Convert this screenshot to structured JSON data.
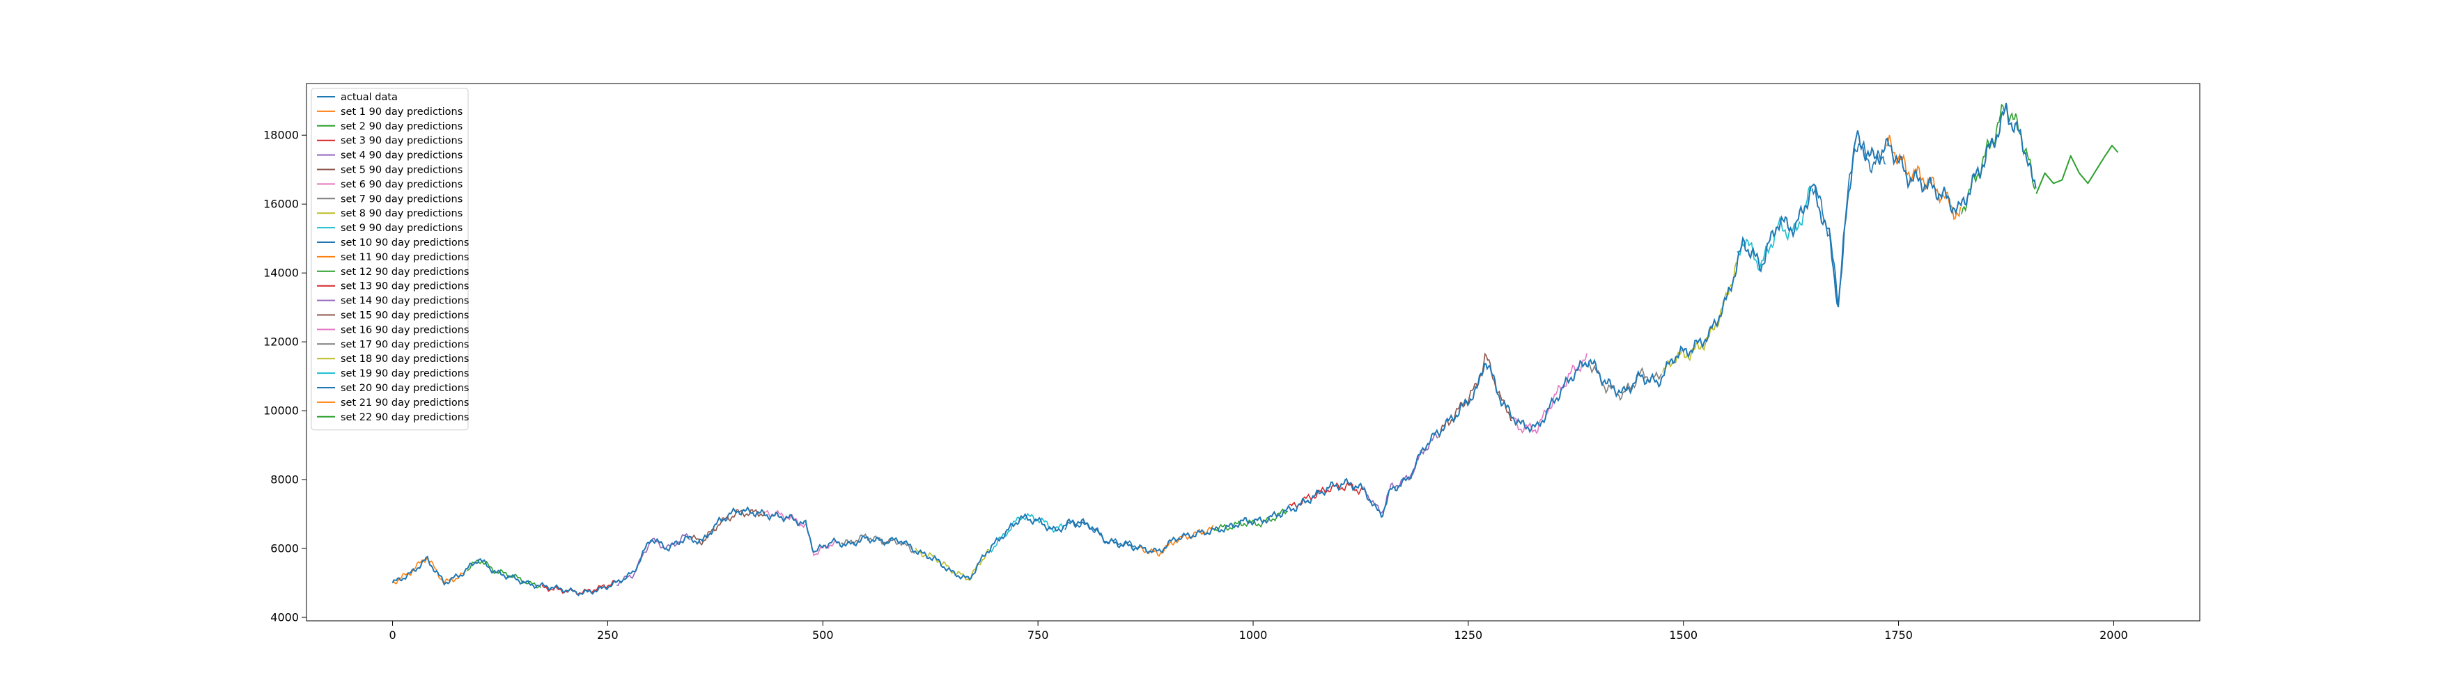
{
  "chart_data": {
    "type": "line",
    "title": "",
    "xlabel": "",
    "ylabel": "",
    "xlim": [
      -100,
      2100
    ],
    "ylim": [
      3900,
      19500
    ],
    "x_ticks": [
      0,
      250,
      500,
      750,
      1000,
      1250,
      1500,
      1750,
      2000
    ],
    "y_ticks": [
      4000,
      6000,
      8000,
      10000,
      12000,
      14000,
      16000,
      18000
    ],
    "grid": false,
    "legend_position": "top-left",
    "actual": {
      "name": "actual data",
      "color": "#1f77b4",
      "points": [
        [
          0,
          5000
        ],
        [
          20,
          5250
        ],
        [
          40,
          5700
        ],
        [
          60,
          5000
        ],
        [
          80,
          5250
        ],
        [
          100,
          5700
        ],
        [
          120,
          5300
        ],
        [
          140,
          5150
        ],
        [
          160,
          4950
        ],
        [
          180,
          4900
        ],
        [
          200,
          4800
        ],
        [
          220,
          4700
        ],
        [
          240,
          4800
        ],
        [
          260,
          5000
        ],
        [
          280,
          5300
        ],
        [
          300,
          6300
        ],
        [
          320,
          6000
        ],
        [
          340,
          6300
        ],
        [
          360,
          6200
        ],
        [
          380,
          6800
        ],
        [
          400,
          7100
        ],
        [
          420,
          7050
        ],
        [
          440,
          6950
        ],
        [
          460,
          6900
        ],
        [
          480,
          6700
        ],
        [
          490,
          5900
        ],
        [
          510,
          6200
        ],
        [
          530,
          6100
        ],
        [
          550,
          6300
        ],
        [
          570,
          6200
        ],
        [
          590,
          6250
        ],
        [
          610,
          5900
        ],
        [
          630,
          5700
        ],
        [
          650,
          5300
        ],
        [
          670,
          5100
        ],
        [
          690,
          5900
        ],
        [
          710,
          6400
        ],
        [
          730,
          6900
        ],
        [
          750,
          6800
        ],
        [
          770,
          6500
        ],
        [
          790,
          6800
        ],
        [
          810,
          6700
        ],
        [
          830,
          6200
        ],
        [
          850,
          6100
        ],
        [
          870,
          6000
        ],
        [
          890,
          5900
        ],
        [
          910,
          6300
        ],
        [
          930,
          6400
        ],
        [
          950,
          6500
        ],
        [
          970,
          6600
        ],
        [
          990,
          6800
        ],
        [
          1010,
          6800
        ],
        [
          1030,
          7000
        ],
        [
          1050,
          7200
        ],
        [
          1070,
          7500
        ],
        [
          1090,
          7800
        ],
        [
          1110,
          7900
        ],
        [
          1130,
          7700
        ],
        [
          1140,
          7200
        ],
        [
          1150,
          7000
        ],
        [
          1160,
          7700
        ],
        [
          1180,
          8000
        ],
        [
          1200,
          9000
        ],
        [
          1220,
          9500
        ],
        [
          1240,
          10000
        ],
        [
          1260,
          10600
        ],
        [
          1270,
          11500
        ],
        [
          1290,
          10200
        ],
        [
          1310,
          9600
        ],
        [
          1330,
          9500
        ],
        [
          1350,
          10300
        ],
        [
          1370,
          11000
        ],
        [
          1390,
          11500
        ],
        [
          1410,
          10800
        ],
        [
          1430,
          10500
        ],
        [
          1450,
          11000
        ],
        [
          1470,
          10800
        ],
        [
          1490,
          11600
        ],
        [
          1510,
          11800
        ],
        [
          1530,
          12200
        ],
        [
          1550,
          13200
        ],
        [
          1570,
          14900
        ],
        [
          1590,
          14200
        ],
        [
          1610,
          15500
        ],
        [
          1630,
          15300
        ],
        [
          1650,
          16500
        ],
        [
          1670,
          15000
        ],
        [
          1680,
          13000
        ],
        [
          1690,
          16000
        ],
        [
          1700,
          17900
        ],
        [
          1720,
          17300
        ],
        [
          1740,
          17700
        ],
        [
          1760,
          16800
        ],
        [
          1780,
          16600
        ],
        [
          1800,
          16300
        ],
        [
          1820,
          15800
        ],
        [
          1840,
          16800
        ],
        [
          1860,
          17800
        ],
        [
          1875,
          18700
        ],
        [
          1890,
          18000
        ],
        [
          1900,
          17400
        ],
        [
          1905,
          16700
        ],
        [
          1910,
          16300
        ]
      ]
    },
    "series": [
      {
        "name": "set 1 90 day predictions",
        "color": "#ff7f0e"
      },
      {
        "name": "set 2 90 day predictions",
        "color": "#2ca02c"
      },
      {
        "name": "set 3 90 day predictions",
        "color": "#d62728"
      },
      {
        "name": "set 4 90 day predictions",
        "color": "#9467bd"
      },
      {
        "name": "set 5 90 day predictions",
        "color": "#8c564b"
      },
      {
        "name": "set 6 90 day predictions",
        "color": "#e377c2"
      },
      {
        "name": "set 7 90 day predictions",
        "color": "#7f7f7f"
      },
      {
        "name": "set 8 90 day predictions",
        "color": "#bcbd22"
      },
      {
        "name": "set 9 90 day predictions",
        "color": "#17becf"
      },
      {
        "name": "set 10 90 day predictions",
        "color": "#1f77b4"
      },
      {
        "name": "set 11 90 day predictions",
        "color": "#ff7f0e"
      },
      {
        "name": "set 12 90 day predictions",
        "color": "#2ca02c"
      },
      {
        "name": "set 13 90 day predictions",
        "color": "#d62728"
      },
      {
        "name": "set 14 90 day predictions",
        "color": "#9467bd"
      },
      {
        "name": "set 15 90 day predictions",
        "color": "#8c564b"
      },
      {
        "name": "set 16 90 day predictions",
        "color": "#e377c2"
      },
      {
        "name": "set 17 90 day predictions",
        "color": "#7f7f7f"
      },
      {
        "name": "set 18 90 day predictions",
        "color": "#bcbd22"
      },
      {
        "name": "set 19 90 day predictions",
        "color": "#17becf"
      },
      {
        "name": "set 20 90 day predictions",
        "color": "#1f77b4"
      },
      {
        "name": "set 21 90 day predictions",
        "color": "#ff7f0e"
      },
      {
        "name": "set 22 90 day predictions",
        "color": "#2ca02c"
      }
    ],
    "forecast": {
      "color": "#2ca02c",
      "points": [
        [
          1910,
          16300
        ],
        [
          1920,
          16900
        ],
        [
          1930,
          16600
        ],
        [
          1940,
          16700
        ],
        [
          1950,
          17400
        ],
        [
          1960,
          16900
        ],
        [
          1970,
          16600
        ],
        [
          1980,
          17000
        ],
        [
          1990,
          17400
        ],
        [
          1998,
          17700
        ],
        [
          2005,
          17500
        ]
      ]
    }
  }
}
